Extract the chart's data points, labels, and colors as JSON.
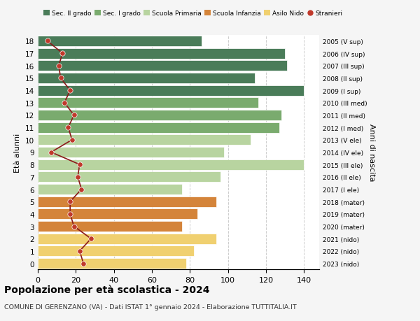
{
  "ages": [
    18,
    17,
    16,
    15,
    14,
    13,
    12,
    11,
    10,
    9,
    8,
    7,
    6,
    5,
    4,
    3,
    2,
    1,
    0
  ],
  "anni_nascita": [
    "2005 (V sup)",
    "2006 (IV sup)",
    "2007 (III sup)",
    "2008 (II sup)",
    "2009 (I sup)",
    "2010 (III med)",
    "2011 (II med)",
    "2012 (I med)",
    "2013 (V ele)",
    "2014 (IV ele)",
    "2015 (III ele)",
    "2016 (II ele)",
    "2017 (I ele)",
    "2018 (mater)",
    "2019 (mater)",
    "2020 (mater)",
    "2021 (nido)",
    "2022 (nido)",
    "2023 (nido)"
  ],
  "bar_values": [
    86,
    130,
    131,
    114,
    140,
    116,
    128,
    127,
    112,
    98,
    140,
    96,
    76,
    94,
    84,
    76,
    94,
    82,
    78
  ],
  "bar_colors": [
    "#4a7c59",
    "#4a7c59",
    "#4a7c59",
    "#4a7c59",
    "#4a7c59",
    "#7aab6e",
    "#7aab6e",
    "#7aab6e",
    "#b8d4a0",
    "#b8d4a0",
    "#b8d4a0",
    "#b8d4a0",
    "#b8d4a0",
    "#d4843a",
    "#d4843a",
    "#d4843a",
    "#f0d070",
    "#f0d070",
    "#f0d070"
  ],
  "stranieri": [
    5,
    13,
    11,
    12,
    17,
    14,
    19,
    16,
    18,
    7,
    22,
    21,
    23,
    17,
    17,
    19,
    28,
    22,
    24
  ],
  "legend_labels": [
    "Sec. II grado",
    "Sec. I grado",
    "Scuola Primaria",
    "Scuola Infanzia",
    "Asilo Nido",
    "Stranieri"
  ],
  "legend_colors": [
    "#4a7c59",
    "#7aab6e",
    "#b8d4a0",
    "#d4843a",
    "#f0d070",
    "#c0392b"
  ],
  "ylabel_left": "Età alunni",
  "ylabel_right": "Anni di nascita",
  "title": "Popolazione per età scolastica - 2024",
  "subtitle": "COMUNE DI GERENZANO (VA) - Dati ISTAT 1° gennaio 2024 - Elaborazione TUTTITALIA.IT",
  "xlim": [
    0,
    148
  ],
  "background_color": "#f5f5f5",
  "bar_background": "#ffffff",
  "grid_color": "#cccccc",
  "stranieri_color": "#c0392b",
  "stranieri_line_color": "#8b1a1a"
}
